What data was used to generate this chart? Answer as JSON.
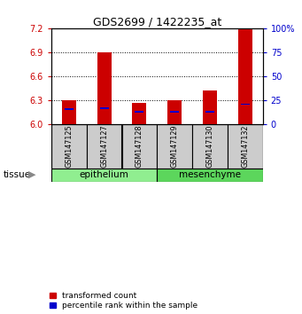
{
  "title": "GDS2699 / 1422235_at",
  "samples": [
    "GSM147125",
    "GSM147127",
    "GSM147128",
    "GSM147129",
    "GSM147130",
    "GSM147132"
  ],
  "tissue_groups": [
    {
      "label": "epithelium",
      "color": "#90EE90",
      "indices": [
        0,
        1,
        2
      ]
    },
    {
      "label": "mesenchyme",
      "color": "#5CD65C",
      "indices": [
        3,
        4,
        5
      ]
    }
  ],
  "transformed_counts": [
    6.3,
    6.9,
    6.27,
    6.3,
    6.42,
    7.2
  ],
  "percentile_ranks": [
    16,
    17,
    13,
    13,
    13,
    21
  ],
  "ylim": [
    6.0,
    7.2
  ],
  "yticks": [
    6.0,
    6.3,
    6.6,
    6.9,
    7.2
  ],
  "right_yticks": [
    0,
    25,
    50,
    75,
    100
  ],
  "bar_color": "#CC0000",
  "percentile_color": "#0000CC",
  "bar_width": 0.4,
  "percentile_bar_width": 0.25,
  "background_color": "#ffffff",
  "label_fontsize": 7,
  "title_fontsize": 9,
  "left_axis_color": "#CC0000",
  "right_axis_color": "#0000CC",
  "sample_box_color": "#CCCCCC",
  "legend_items": [
    "transformed count",
    "percentile rank within the sample"
  ]
}
